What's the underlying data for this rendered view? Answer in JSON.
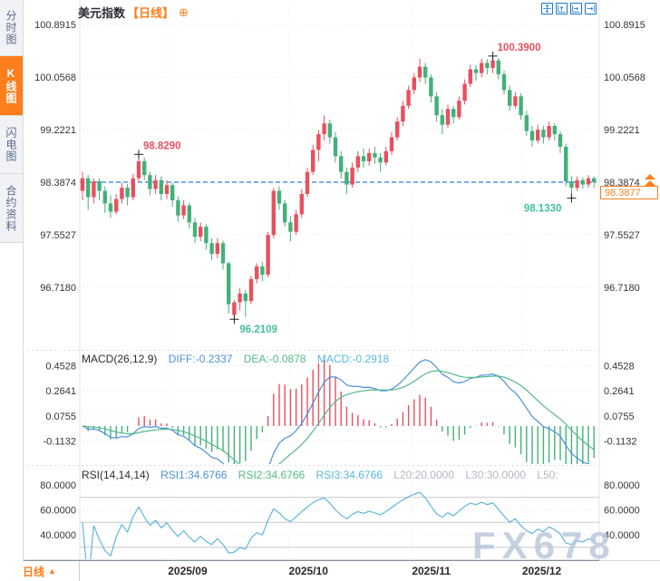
{
  "sidebar": {
    "tabs": [
      {
        "label": "分时图",
        "active": false
      },
      {
        "label": "K线图",
        "active": true
      },
      {
        "label": "闪电图",
        "active": false
      },
      {
        "label": "合约资料",
        "active": false
      }
    ]
  },
  "header": {
    "title": "美元指数",
    "period_tag": "【日线】",
    "add_icon": "⊕"
  },
  "toolbar": {
    "icons": [
      "crosshair-icon",
      "zoom-vertical-icon",
      "zoom-horizontal-icon",
      "pan-right-icon"
    ]
  },
  "price_axis": {
    "labels": [
      "100.8915",
      "100.0568",
      "99.2221",
      "98.3874",
      "97.5527",
      "96.7180"
    ]
  },
  "macd": {
    "header": {
      "name": "MACD(26,12,9)",
      "diff": "DIFF:-0.2337",
      "dea": "DEA:-0.0878",
      "macd": "MACD:-0.2918"
    },
    "axis": [
      "0.4528",
      "0.2641",
      "0.0755",
      "-0.1132"
    ]
  },
  "rsi": {
    "header": {
      "name": "RSI(14,14,14)",
      "rsi1": "RSI1:34.6766",
      "rsi2": "RSI2:34.6766",
      "rsi3": "RSI3:34.6766",
      "l20": "L20:20.0000",
      "l30": "L30:30.0000",
      "l50": "L50:"
    },
    "axis": [
      "80.0000",
      "60.0000",
      "40.0000"
    ]
  },
  "annotations": {
    "last_price": "98.3877"
  },
  "bottom_bar": {
    "period": "日线",
    "arrow": "▲",
    "dates": [
      "2025/09",
      "2025/10",
      "2025/11",
      "2025/12"
    ]
  },
  "watermark": "FX678",
  "colors": {
    "up": "#e8505e",
    "down": "#43b07a",
    "accent": "#fd7e1c",
    "dash_line": "#2b7fe0",
    "diff": "#4a90d9",
    "dea": "#53b98a",
    "macd": "#57b8e0",
    "rsi": "#54b0dc",
    "axis_text": "#33353a",
    "grid": "#e5e5ea",
    "ref_line": "#c8c8ce",
    "watermark": "#b7c6da",
    "icon_blue": "#1878c8"
  },
  "chart_data": {
    "type": "candlestick",
    "title": "美元指数 日线",
    "ylabels": [
      100.8915,
      100.0568,
      99.2221,
      98.3874,
      97.5527,
      96.718
    ],
    "prev_close_line": 98.3874,
    "last_price": 98.3877,
    "x_months": [
      {
        "label": "2025/09",
        "i": 15.2
      },
      {
        "label": "2025/10",
        "i": 36.7
      },
      {
        "label": "2025/11",
        "i": 58.6
      },
      {
        "label": "2025/12",
        "i": 78.2
      }
    ],
    "marked_points": [
      {
        "label": "98.8290",
        "price": 98.829,
        "i": 10,
        "color": "#e8505e",
        "pos": "above-right"
      },
      {
        "label": "100.3900",
        "price": 100.39,
        "i": 73,
        "color": "#e8505e",
        "pos": "above-right"
      },
      {
        "label": "96.2109",
        "price": 96.2109,
        "i": 27,
        "color": "#46c0a0",
        "pos": "below-right"
      },
      {
        "label": "98.1330",
        "price": 98.133,
        "i": 87,
        "color": "#46c0a0",
        "pos": "below-left"
      }
    ],
    "candles": [
      [
        98.25,
        98.55,
        98.1,
        98.45
      ],
      [
        98.45,
        98.5,
        97.95,
        98.15
      ],
      [
        98.15,
        98.45,
        98.05,
        98.4
      ],
      [
        98.4,
        98.45,
        98.1,
        98.25
      ],
      [
        98.25,
        98.32,
        97.9,
        98.05
      ],
      [
        98.05,
        98.18,
        97.82,
        97.92
      ],
      [
        97.92,
        98.2,
        97.88,
        98.12
      ],
      [
        98.12,
        98.38,
        98.05,
        98.3
      ],
      [
        98.3,
        98.36,
        98.02,
        98.15
      ],
      [
        98.15,
        98.52,
        98.1,
        98.45
      ],
      [
        98.45,
        98.829,
        98.4,
        98.72
      ],
      [
        98.72,
        98.78,
        98.42,
        98.5
      ],
      [
        98.5,
        98.55,
        98.18,
        98.28
      ],
      [
        98.28,
        98.5,
        98.2,
        98.42
      ],
      [
        98.42,
        98.48,
        98.1,
        98.2
      ],
      [
        98.2,
        98.42,
        98.12,
        98.34
      ],
      [
        98.34,
        98.38,
        98.0,
        98.1
      ],
      [
        98.1,
        98.16,
        97.76,
        97.86
      ],
      [
        97.86,
        98.1,
        97.8,
        98.02
      ],
      [
        98.02,
        98.06,
        97.65,
        97.75
      ],
      [
        97.75,
        97.82,
        97.42,
        97.52
      ],
      [
        97.52,
        97.75,
        97.45,
        97.68
      ],
      [
        97.68,
        97.72,
        97.32,
        97.42
      ],
      [
        97.42,
        97.5,
        97.15,
        97.25
      ],
      [
        97.25,
        97.5,
        97.18,
        97.42
      ],
      [
        97.42,
        97.46,
        97.0,
        97.1
      ],
      [
        97.1,
        97.13,
        96.3,
        96.45
      ],
      [
        96.28,
        96.52,
        96.2109,
        96.48
      ],
      [
        96.48,
        96.7,
        96.35,
        96.62
      ],
      [
        96.62,
        96.68,
        96.25,
        96.5
      ],
      [
        96.5,
        96.9,
        96.45,
        96.85
      ],
      [
        96.85,
        97.1,
        96.78,
        97.05
      ],
      [
        97.05,
        97.12,
        96.82,
        96.92
      ],
      [
        96.92,
        97.6,
        96.88,
        97.55
      ],
      [
        97.55,
        98.3,
        97.5,
        98.25
      ],
      [
        98.25,
        98.32,
        97.95,
        98.05
      ],
      [
        98.05,
        98.1,
        97.68,
        97.75
      ],
      [
        97.75,
        97.85,
        97.45,
        97.6
      ],
      [
        97.6,
        97.95,
        97.55,
        97.88
      ],
      [
        97.88,
        98.28,
        97.82,
        98.2
      ],
      [
        98.2,
        98.62,
        98.15,
        98.55
      ],
      [
        98.55,
        98.98,
        98.5,
        98.9
      ],
      [
        98.9,
        99.22,
        98.72,
        99.15
      ],
      [
        99.15,
        99.45,
        99.05,
        99.32
      ],
      [
        99.32,
        99.38,
        99.0,
        99.1
      ],
      [
        99.1,
        99.18,
        98.7,
        98.8
      ],
      [
        98.8,
        98.88,
        98.45,
        98.55
      ],
      [
        98.55,
        98.62,
        98.2,
        98.35
      ],
      [
        98.35,
        98.7,
        98.3,
        98.62
      ],
      [
        98.62,
        98.88,
        98.55,
        98.8
      ],
      [
        98.8,
        98.92,
        98.62,
        98.72
      ],
      [
        98.72,
        98.92,
        98.65,
        98.85
      ],
      [
        98.85,
        98.95,
        98.68,
        98.78
      ],
      [
        98.78,
        98.85,
        98.55,
        98.7
      ],
      [
        98.7,
        98.95,
        98.65,
        98.88
      ],
      [
        98.88,
        99.18,
        98.82,
        99.1
      ],
      [
        99.1,
        99.42,
        99.05,
        99.35
      ],
      [
        99.35,
        99.68,
        99.28,
        99.6
      ],
      [
        99.6,
        99.92,
        99.55,
        99.85
      ],
      [
        99.85,
        100.12,
        99.78,
        100.05
      ],
      [
        100.05,
        100.35,
        99.98,
        100.22
      ],
      [
        100.22,
        100.28,
        99.95,
        100.05
      ],
      [
        100.05,
        100.1,
        99.65,
        99.75
      ],
      [
        99.75,
        99.82,
        99.35,
        99.45
      ],
      [
        99.45,
        99.55,
        99.15,
        99.3
      ],
      [
        99.3,
        99.62,
        99.25,
        99.55
      ],
      [
        99.55,
        99.6,
        99.32,
        99.42
      ],
      [
        99.42,
        99.75,
        99.38,
        99.68
      ],
      [
        99.68,
        100.02,
        99.62,
        99.95
      ],
      [
        99.95,
        100.25,
        99.9,
        100.18
      ],
      [
        100.18,
        100.25,
        100.0,
        100.12
      ],
      [
        100.12,
        100.35,
        100.05,
        100.28
      ],
      [
        100.28,
        100.34,
        100.1,
        100.2
      ],
      [
        100.2,
        100.39,
        100.12,
        100.32
      ],
      [
        100.32,
        100.36,
        100.02,
        100.1
      ],
      [
        100.1,
        100.16,
        99.78,
        99.85
      ],
      [
        99.85,
        99.92,
        99.52,
        99.6
      ],
      [
        99.6,
        99.82,
        99.55,
        99.75
      ],
      [
        99.75,
        99.8,
        99.38,
        99.45
      ],
      [
        99.45,
        99.52,
        99.12,
        99.2
      ],
      [
        99.2,
        99.28,
        98.95,
        99.05
      ],
      [
        99.05,
        99.3,
        99.0,
        99.22
      ],
      [
        99.22,
        99.28,
        99.0,
        99.1
      ],
      [
        99.1,
        99.35,
        99.05,
        99.28
      ],
      [
        99.28,
        99.32,
        99.05,
        99.15
      ],
      [
        99.15,
        99.2,
        98.85,
        98.95
      ],
      [
        98.95,
        99.0,
        98.32,
        98.4
      ],
      [
        98.4,
        98.48,
        98.133,
        98.3
      ],
      [
        98.3,
        98.48,
        98.25,
        98.42
      ],
      [
        98.42,
        98.46,
        98.28,
        98.35
      ],
      [
        98.35,
        98.5,
        98.3,
        98.45
      ],
      [
        98.45,
        98.48,
        98.3,
        98.3877
      ]
    ],
    "indicators": {
      "macd": {
        "params": [
          26,
          12,
          9
        ],
        "diff": -0.2337,
        "dea": -0.0878,
        "macd": -0.2918,
        "axis": [
          0.4528,
          0.2641,
          0.0755,
          -0.1132
        ]
      },
      "rsi": {
        "params": [
          14,
          14,
          14
        ],
        "values": [
          34.6766,
          34.6766,
          34.6766
        ],
        "axis": [
          80,
          60,
          40
        ],
        "ref_lines": [
          70,
          50,
          30
        ]
      }
    }
  }
}
